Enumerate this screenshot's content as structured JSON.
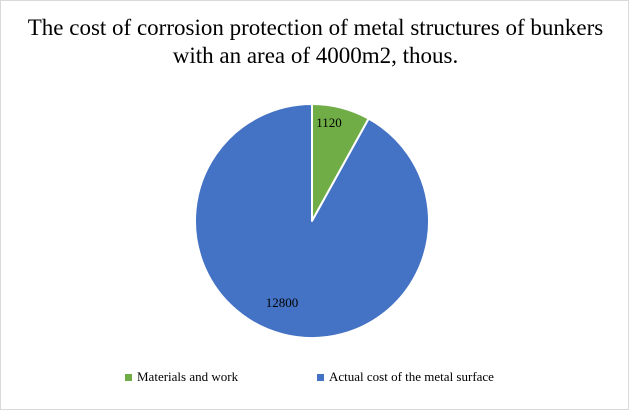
{
  "chart_data": {
    "type": "pie",
    "title": "The cost of corrosion protection of metal structures of bunkers with an area of 4000m2, thous.",
    "title_lines": [
      "The cost of corrosion protection of metal structures of bunkers",
      "with an area of 4000m2, thous."
    ],
    "categories": [
      "Materials and work",
      "Actual cost of the metal surface"
    ],
    "values": [
      1120,
      12800
    ],
    "data_labels": [
      "1120",
      "12800"
    ],
    "colors": [
      "#70AD47",
      "#4472C4"
    ],
    "legend_position": "bottom",
    "start_angle_deg": 0,
    "direction": "clockwise"
  }
}
